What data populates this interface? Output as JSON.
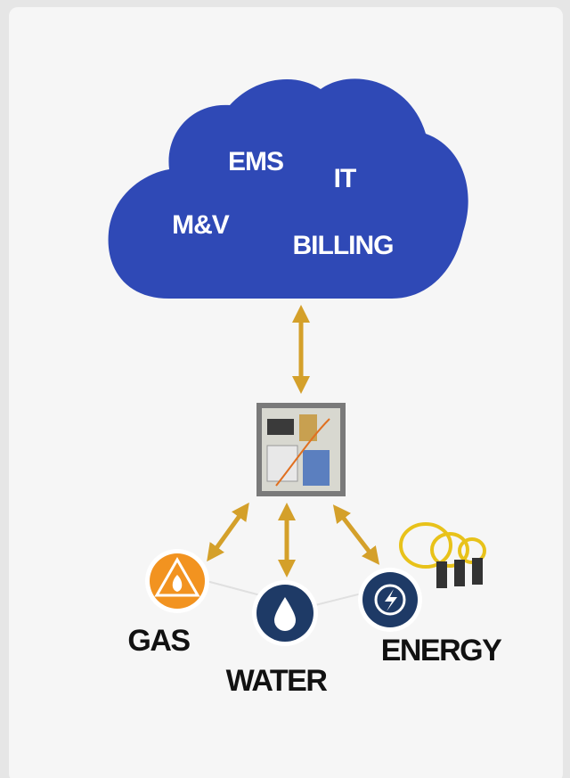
{
  "cloud": {
    "labels": [
      "EMS",
      "IT",
      "M&V",
      "BILLING"
    ]
  },
  "nodes": [
    {
      "label": "GAS"
    },
    {
      "label": "WATER"
    },
    {
      "label": "ENERGY"
    }
  ]
}
